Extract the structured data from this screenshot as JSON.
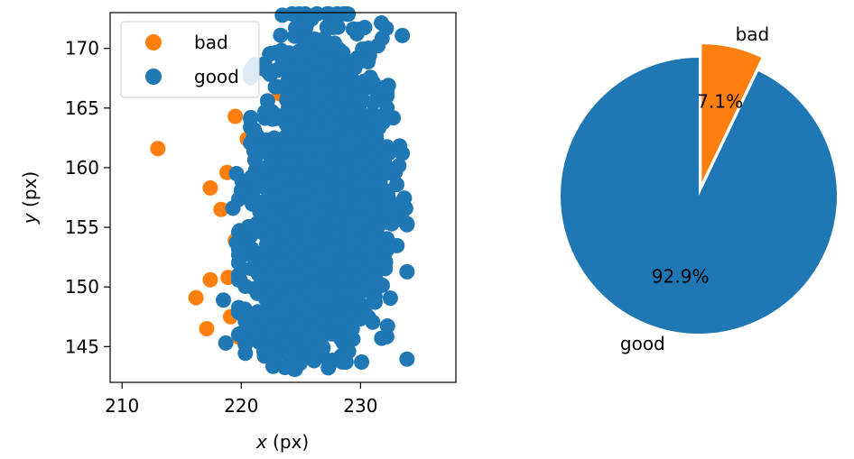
{
  "chart_data": [
    {
      "type": "scatter",
      "xlabel_var": "x",
      "xlabel_unit": " (px)",
      "ylabel_var": "y",
      "ylabel_unit": " (px)",
      "xlim": [
        209,
        238
      ],
      "ylim": [
        142,
        173
      ],
      "x_ticks": [
        210,
        220,
        230
      ],
      "y_ticks": [
        145,
        150,
        155,
        160,
        165,
        170
      ],
      "grid": false,
      "legend_position": "top-left",
      "series": [
        {
          "name": "bad",
          "color": "#ff7f0e",
          "points": [
            [
              213.0,
              161.6
            ],
            [
              219.5,
              164.3
            ],
            [
              220.5,
              162.4
            ],
            [
              218.8,
              159.6
            ],
            [
              217.4,
              158.3
            ],
            [
              218.3,
              156.5
            ],
            [
              219.5,
              153.9
            ],
            [
              217.4,
              150.6
            ],
            [
              218.9,
              150.8
            ],
            [
              216.2,
              149.1
            ],
            [
              217.1,
              146.5
            ],
            [
              219.1,
              147.5
            ],
            [
              221.2,
              149.8
            ],
            [
              222.0,
              146.4
            ],
            [
              223.1,
              145.9
            ],
            [
              221.4,
              155.4
            ],
            [
              222.4,
              158.4
            ],
            [
              223.2,
              166.2
            ],
            [
              219.8,
              145.8
            ],
            [
              229.6,
              160.6
            ]
          ]
        },
        {
          "name": "good",
          "color": "#1f77b4",
          "clusters": [
            {
              "cx": 226.5,
              "cy": 163,
              "sx": 2.6,
              "sy": 4.5,
              "n": 650
            },
            {
              "cx": 225.5,
              "cy": 153,
              "sx": 2.6,
              "sy": 4.0,
              "n": 650
            },
            {
              "cx": 224.3,
              "cy": 147.5,
              "sx": 1.8,
              "sy": 2.0,
              "n": 220
            },
            {
              "cx": 229.5,
              "cy": 158,
              "sx": 2.0,
              "sy": 6.5,
              "n": 320
            }
          ],
          "points": [
            [
              219.6,
              159.5
            ],
            [
              220.0,
              158.1
            ],
            [
              219.3,
              156.6
            ],
            [
              219.6,
              153.7
            ],
            [
              218.5,
              148.9
            ],
            [
              218.7,
              145.3
            ],
            [
              220.0,
              145.9
            ],
            [
              220.8,
              164.2
            ],
            [
              223.0,
              166.8
            ],
            [
              233.5,
              161.2
            ],
            [
              231.2,
              153.8
            ],
            [
              230.4,
              147.8
            ],
            [
              225.4,
              171.7
            ],
            [
              229.8,
              171.6
            ],
            [
              223.3,
              171.1
            ],
            [
              231.8,
              166.4
            ],
            [
              224.2,
              143.6
            ],
            [
              228.3,
              143.8
            ],
            [
              229.0,
              144.6
            ]
          ]
        }
      ]
    },
    {
      "type": "pie",
      "startangle": 90,
      "slices": [
        {
          "label": "good",
          "value": 92.9,
          "pct_label": "92.9%",
          "color": "#1f77b4",
          "explode": 0
        },
        {
          "label": "bad",
          "value": 7.1,
          "pct_label": "7.1%",
          "color": "#ff7f0e",
          "explode": 0.1
        }
      ]
    }
  ]
}
